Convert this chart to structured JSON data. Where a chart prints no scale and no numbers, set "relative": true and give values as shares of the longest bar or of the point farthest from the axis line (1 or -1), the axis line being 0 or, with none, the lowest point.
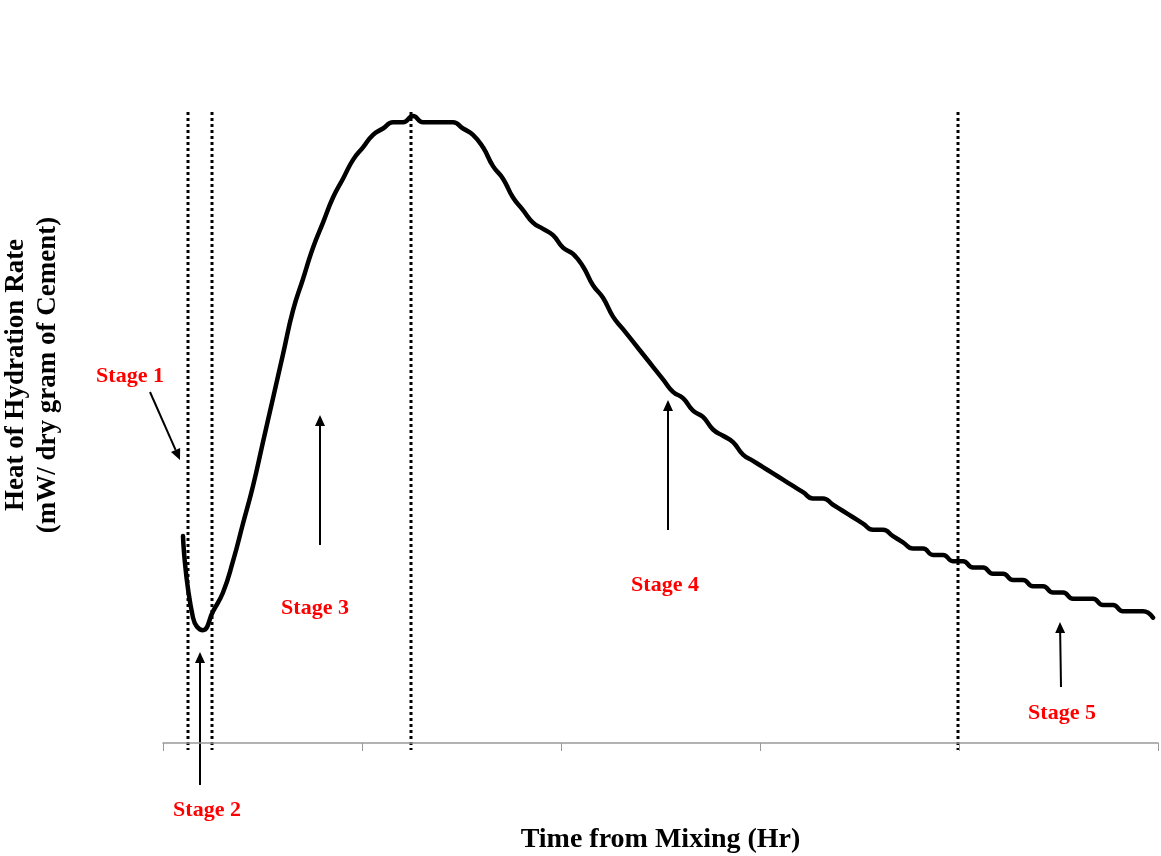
{
  "chart_data": {
    "type": "line",
    "relative": true,
    "xlabel": "Time from Mixing (Hr)",
    "ylabel": "Heat of Hydration Rate\n(mW/ dry gram of Cement)",
    "categories": [
      null,
      null,
      null,
      null,
      null,
      null,
      null,
      null,
      null,
      null,
      null,
      null,
      null,
      null,
      null,
      null,
      null,
      null,
      null,
      null,
      null,
      null,
      null,
      null,
      null,
      null,
      null,
      null,
      null,
      null,
      null,
      null,
      null,
      null,
      null,
      null,
      null,
      null,
      null,
      null,
      null,
      null,
      null,
      null,
      null,
      null,
      null,
      null,
      null,
      null,
      null,
      null,
      null,
      null,
      null,
      null,
      null,
      null,
      null,
      null,
      null,
      null,
      null,
      null,
      null,
      null,
      null,
      null,
      null,
      null,
      null,
      null,
      null,
      null,
      null,
      null,
      null,
      null,
      null,
      null,
      null,
      null,
      null,
      null,
      null,
      null,
      null,
      null,
      null,
      null,
      null,
      null,
      null,
      null,
      null,
      null,
      null,
      null,
      null,
      null
    ],
    "series": [
      {
        "color": "#000000",
        "values": [
          null,
          null,
          0.33,
          0.2,
          0.18,
          0.21,
          0.24,
          0.29,
          0.35,
          0.41,
          0.48,
          0.55,
          0.62,
          0.69,
          0.74,
          0.79,
          0.83,
          0.87,
          0.9,
          0.93,
          0.95,
          0.97,
          0.98,
          0.99,
          0.99,
          1,
          0.99,
          0.99,
          0.99,
          0.99,
          0.98,
          0.97,
          0.95,
          0.92,
          0.9,
          0.87,
          0.85,
          0.83,
          0.82,
          0.81,
          0.79,
          0.78,
          0.76,
          0.73,
          0.71,
          0.68,
          0.66,
          0.64,
          0.62,
          0.6,
          0.58,
          0.56,
          0.55,
          0.53,
          0.52,
          0.5,
          0.49,
          0.48,
          0.46,
          0.45,
          0.44,
          0.43,
          0.42,
          0.41,
          0.4,
          0.39,
          0.39,
          0.38,
          0.37,
          0.36,
          0.35,
          0.34,
          0.34,
          0.33,
          0.32,
          0.31,
          0.31,
          0.3,
          0.3,
          0.29,
          0.29,
          0.28,
          0.28,
          0.27,
          0.27,
          0.26,
          0.26,
          0.25,
          0.25,
          0.24,
          0.24,
          0.23,
          0.23,
          0.23,
          0.22,
          0.22,
          0.21,
          0.21,
          0.21,
          0.2
        ]
      }
    ],
    "annotations": [
      "Stage 1",
      "Stage 2",
      "Stage 3",
      "Stage 4",
      "Stage 5"
    ],
    "marker": "none",
    "line_style": "solid",
    "grid": false
  }
}
